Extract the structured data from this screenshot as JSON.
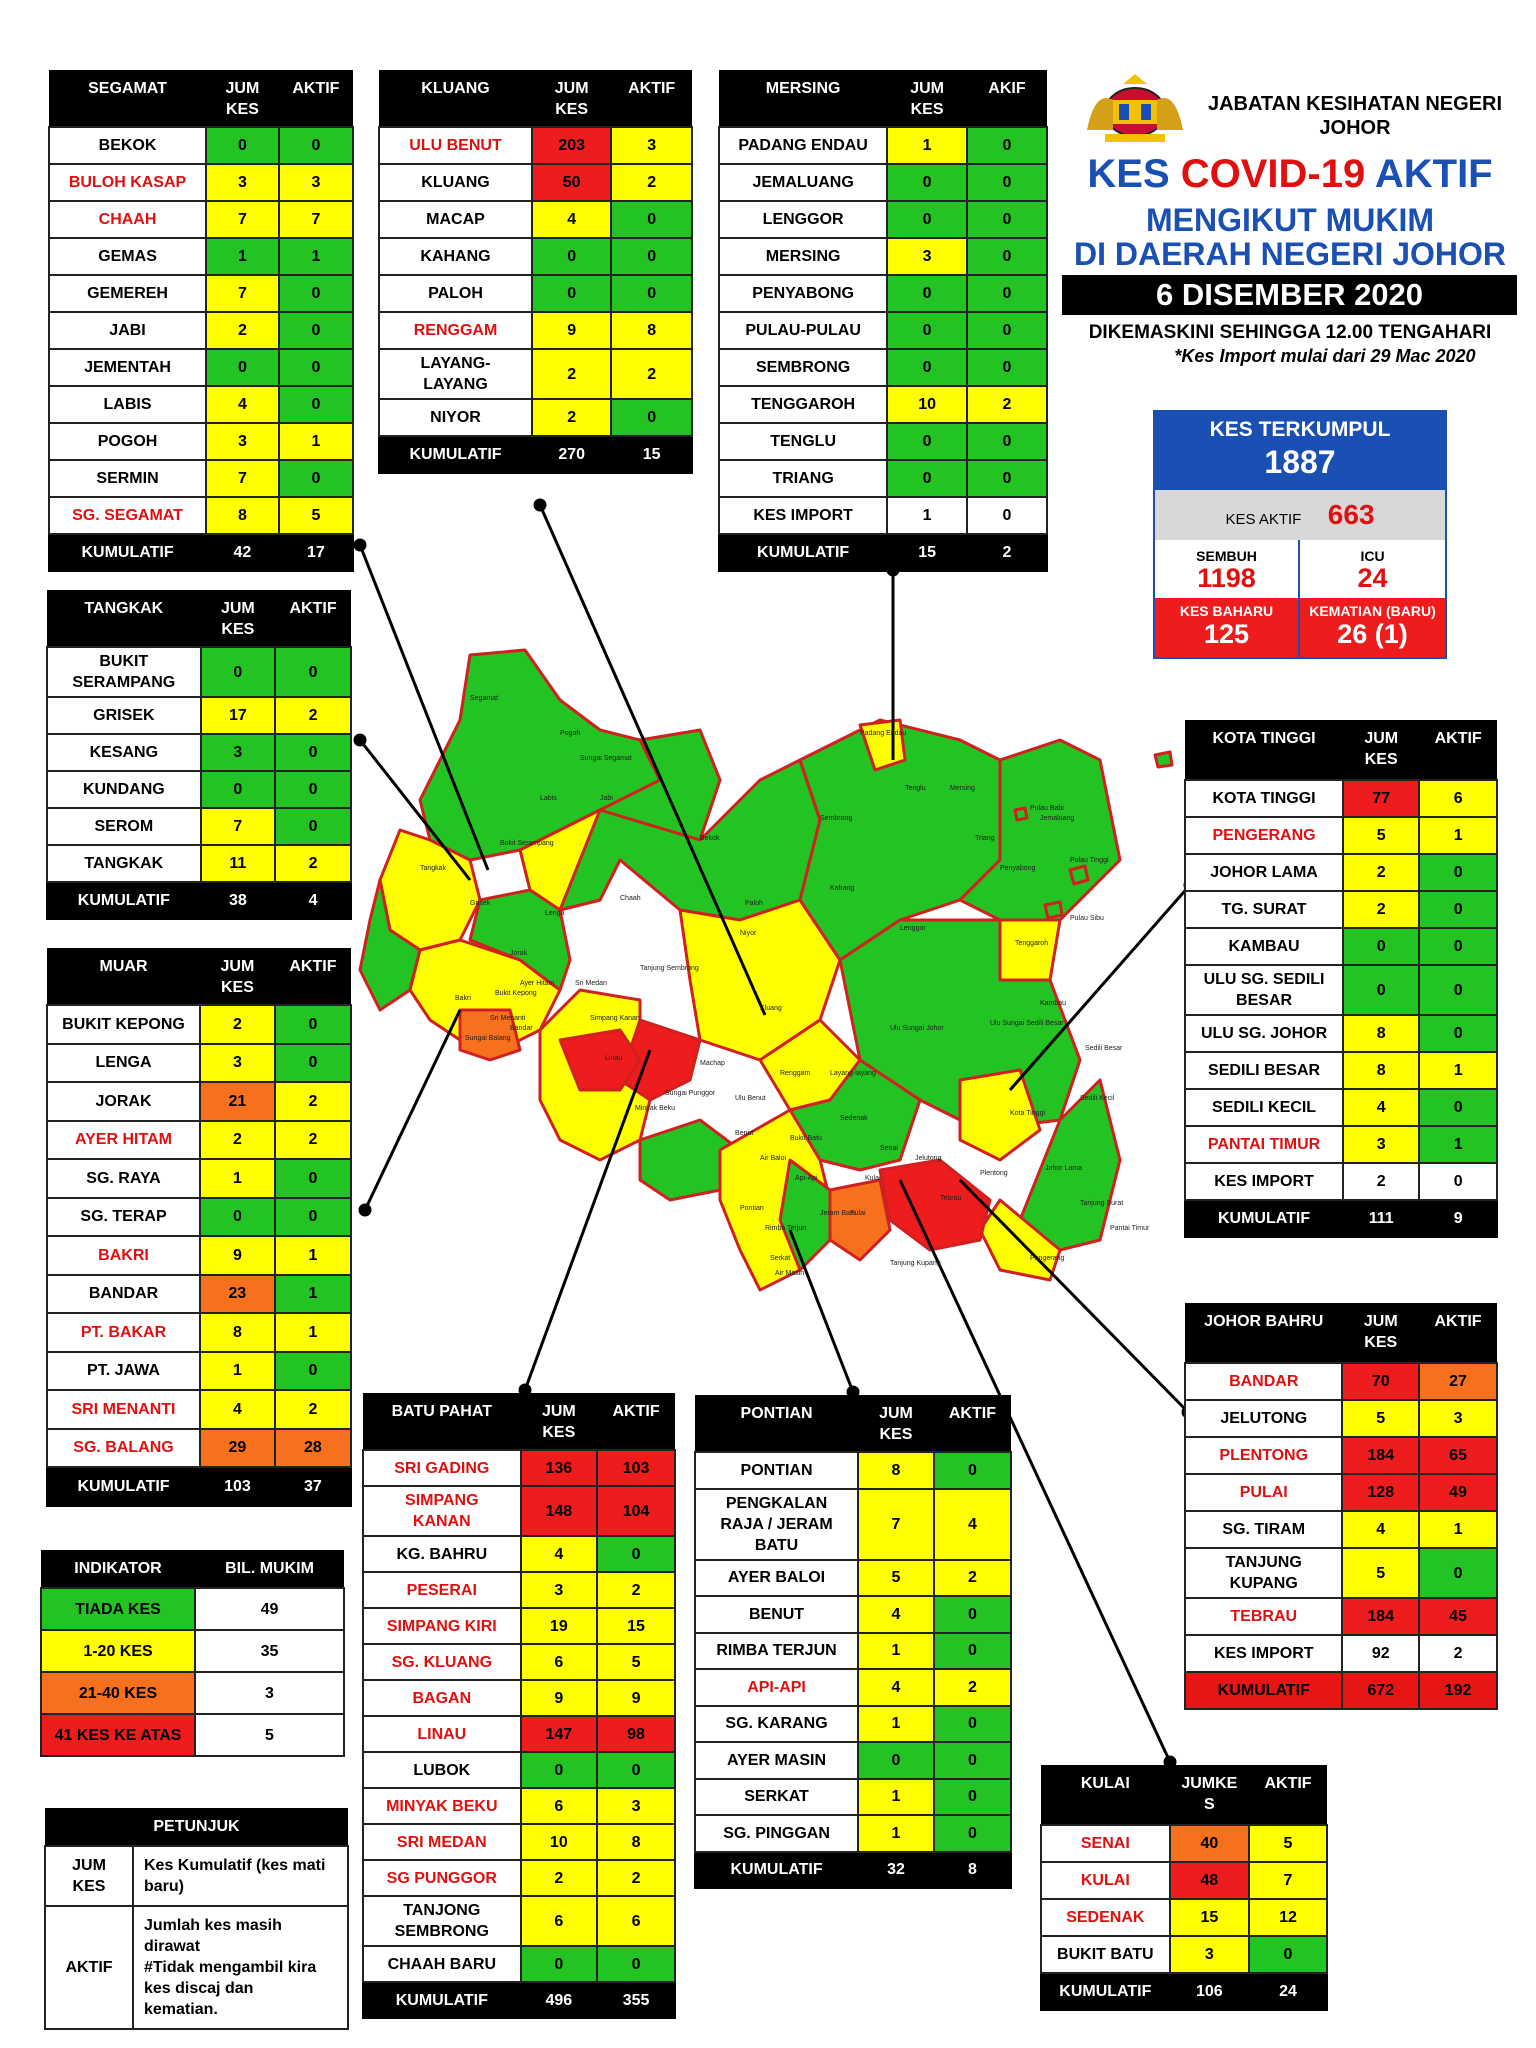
{
  "header": {
    "agency": "JABATAN KESIHATAN NEGERI\nJOHOR",
    "title_part1": "KES ",
    "title_part2": "COVID-19 ",
    "title_part3": "AKTIF",
    "subtitle1": "MENGIKUT MUKIM",
    "subtitle2": "DI DAERAH NEGERI JOHOR",
    "date": "6 DISEMBER 2020",
    "updated": "DIKEMASKINI SEHINGGA 12.00 TENGAHARI",
    "import_note": "*Kes Import mulai dari 29 Mac 2020"
  },
  "summary": {
    "cumulative_label": "KES TERKUMPUL",
    "cumulative_value": "1887",
    "active_label": "KES AKTIF",
    "active_value": "663",
    "recovered_label": "SEMBUH",
    "recovered_value": "1198",
    "icu_label": "ICU",
    "icu_value": "24",
    "new_label": "KES BAHARU",
    "new_value": "125",
    "death_label": "KEMATIAN (BARU)",
    "death_value": "26 (1)"
  },
  "colors": {
    "green": "#22c322",
    "yellow": "#ffff00",
    "orange": "#f7701e",
    "red": "#ee1c1c",
    "blue": "#1a4fb4"
  },
  "districts": [
    {
      "name": "SEGAMAT",
      "col1": "JUM\nKES",
      "col2": "AKTIF",
      "rows": [
        {
          "m": "BEKOK",
          "k": "0",
          "a": "0",
          "red": false,
          "kc": "g",
          "ac": "g"
        },
        {
          "m": "BULOH KASAP",
          "k": "3",
          "a": "3",
          "red": true,
          "kc": "y",
          "ac": "y"
        },
        {
          "m": "CHAAH",
          "k": "7",
          "a": "7",
          "red": true,
          "kc": "y",
          "ac": "y"
        },
        {
          "m": "GEMAS",
          "k": "1",
          "a": "1",
          "red": false,
          "kc": "g",
          "ac": "g"
        },
        {
          "m": "GEMEREH",
          "k": "7",
          "a": "0",
          "red": false,
          "kc": "y",
          "ac": "g"
        },
        {
          "m": "JABI",
          "k": "2",
          "a": "0",
          "red": false,
          "kc": "y",
          "ac": "g"
        },
        {
          "m": "JEMENTAH",
          "k": "0",
          "a": "0",
          "red": false,
          "kc": "g",
          "ac": "g"
        },
        {
          "m": "LABIS",
          "k": "4",
          "a": "0",
          "red": false,
          "kc": "y",
          "ac": "g"
        },
        {
          "m": "POGOH",
          "k": "3",
          "a": "1",
          "red": false,
          "kc": "y",
          "ac": "y"
        },
        {
          "m": "SERMIN",
          "k": "7",
          "a": "0",
          "red": false,
          "kc": "y",
          "ac": "g"
        },
        {
          "m": "SG. SEGAMAT",
          "k": "8",
          "a": "5",
          "red": true,
          "kc": "y",
          "ac": "y"
        }
      ],
      "total_label": "KUMULATIF",
      "total_k": "42",
      "total_a": "17"
    },
    {
      "name": "KLUANG",
      "col1": "JUM\nKES",
      "col2": "AKTIF",
      "rows": [
        {
          "m": "ULU BENUT",
          "k": "203",
          "a": "3",
          "red": true,
          "kc": "r",
          "ac": "y"
        },
        {
          "m": "KLUANG",
          "k": "50",
          "a": "2",
          "red": false,
          "kc": "r",
          "ac": "y"
        },
        {
          "m": "MACAP",
          "k": "4",
          "a": "0",
          "red": false,
          "kc": "y",
          "ac": "g"
        },
        {
          "m": "KAHANG",
          "k": "0",
          "a": "0",
          "red": false,
          "kc": "g",
          "ac": "g"
        },
        {
          "m": "PALOH",
          "k": "0",
          "a": "0",
          "red": false,
          "kc": "g",
          "ac": "g"
        },
        {
          "m": "RENGGAM",
          "k": "9",
          "a": "8",
          "red": true,
          "kc": "y",
          "ac": "y"
        },
        {
          "m": "LAYANG-\nLAYANG",
          "k": "2",
          "a": "2",
          "red": false,
          "kc": "y",
          "ac": "y"
        },
        {
          "m": "NIYOR",
          "k": "2",
          "a": "0",
          "red": false,
          "kc": "y",
          "ac": "g"
        }
      ],
      "total_label": "KUMULATIF",
      "total_k": "270",
      "total_a": "15"
    },
    {
      "name": "MERSING",
      "col1": "JUM\nKES",
      "col2": "AKIF",
      "rows": [
        {
          "m": "PADANG ENDAU",
          "k": "1",
          "a": "0",
          "red": false,
          "kc": "y",
          "ac": "g"
        },
        {
          "m": "JEMALUANG",
          "k": "0",
          "a": "0",
          "red": false,
          "kc": "g",
          "ac": "g"
        },
        {
          "m": "LENGGOR",
          "k": "0",
          "a": "0",
          "red": false,
          "kc": "g",
          "ac": "g"
        },
        {
          "m": "MERSING",
          "k": "3",
          "a": "0",
          "red": false,
          "kc": "y",
          "ac": "g"
        },
        {
          "m": "PENYABONG",
          "k": "0",
          "a": "0",
          "red": false,
          "kc": "g",
          "ac": "g"
        },
        {
          "m": "PULAU-PULAU",
          "k": "0",
          "a": "0",
          "red": false,
          "kc": "g",
          "ac": "g"
        },
        {
          "m": "SEMBRONG",
          "k": "0",
          "a": "0",
          "red": false,
          "kc": "g",
          "ac": "g"
        },
        {
          "m": "TENGGAROH",
          "k": "10",
          "a": "2",
          "red": false,
          "kc": "y",
          "ac": "y"
        },
        {
          "m": "TENGLU",
          "k": "0",
          "a": "0",
          "red": false,
          "kc": "g",
          "ac": "g"
        },
        {
          "m": "TRIANG",
          "k": "0",
          "a": "0",
          "red": false,
          "kc": "g",
          "ac": "g"
        },
        {
          "m": "KES IMPORT",
          "k": "1",
          "a": "0",
          "red": false,
          "kc": "w",
          "ac": "w"
        }
      ],
      "total_label": "KUMULATIF",
      "total_k": "15",
      "total_a": "2"
    },
    {
      "name": "TANGKAK",
      "col1": "JUM\nKES",
      "col2": "AKTIF",
      "rows": [
        {
          "m": "BUKIT\nSERAMPANG",
          "k": "0",
          "a": "0",
          "red": false,
          "kc": "g",
          "ac": "g"
        },
        {
          "m": "GRISEK",
          "k": "17",
          "a": "2",
          "red": false,
          "kc": "y",
          "ac": "y"
        },
        {
          "m": "KESANG",
          "k": "3",
          "a": "0",
          "red": false,
          "kc": "g",
          "ac": "g"
        },
        {
          "m": "KUNDANG",
          "k": "0",
          "a": "0",
          "red": false,
          "kc": "g",
          "ac": "g"
        },
        {
          "m": "SEROM",
          "k": "7",
          "a": "0",
          "red": false,
          "kc": "y",
          "ac": "g"
        },
        {
          "m": "TANGKAK",
          "k": "11",
          "a": "2",
          "red": false,
          "kc": "y",
          "ac": "y"
        }
      ],
      "total_label": "KUMULATIF",
      "total_k": "38",
      "total_a": "4"
    },
    {
      "name": "MUAR",
      "col1": "JUM\nKES",
      "col2": "AKTIF",
      "rows": [
        {
          "m": "BUKIT KEPONG",
          "k": "2",
          "a": "0",
          "red": false,
          "kc": "y",
          "ac": "g"
        },
        {
          "m": "LENGA",
          "k": "3",
          "a": "0",
          "red": false,
          "kc": "y",
          "ac": "g"
        },
        {
          "m": "JORAK",
          "k": "21",
          "a": "2",
          "red": false,
          "kc": "o",
          "ac": "y"
        },
        {
          "m": "AYER HITAM",
          "k": "2",
          "a": "2",
          "red": true,
          "kc": "y",
          "ac": "y"
        },
        {
          "m": "SG. RAYA",
          "k": "1",
          "a": "0",
          "red": false,
          "kc": "y",
          "ac": "g"
        },
        {
          "m": "SG. TERAP",
          "k": "0",
          "a": "0",
          "red": false,
          "kc": "g",
          "ac": "g"
        },
        {
          "m": "BAKRI",
          "k": "9",
          "a": "1",
          "red": true,
          "kc": "y",
          "ac": "y"
        },
        {
          "m": "BANDAR",
          "k": "23",
          "a": "1",
          "red": false,
          "kc": "o",
          "ac": "g"
        },
        {
          "m": "PT. BAKAR",
          "k": "8",
          "a": "1",
          "red": true,
          "kc": "y",
          "ac": "y"
        },
        {
          "m": "PT. JAWA",
          "k": "1",
          "a": "0",
          "red": false,
          "kc": "y",
          "ac": "g"
        },
        {
          "m": "SRI MENANTI",
          "k": "4",
          "a": "2",
          "red": true,
          "kc": "y",
          "ac": "y"
        },
        {
          "m": "SG. BALANG",
          "k": "29",
          "a": "28",
          "red": true,
          "kc": "o",
          "ac": "o"
        }
      ],
      "total_label": "KUMULATIF",
      "total_k": "103",
      "total_a": "37"
    },
    {
      "name": "BATU PAHAT",
      "col1": "JUM\nKES",
      "col2": "AKTIF",
      "rows": [
        {
          "m": "SRI GADING",
          "k": "136",
          "a": "103",
          "red": true,
          "kc": "r",
          "ac": "r"
        },
        {
          "m": "SIMPANG\nKANAN",
          "k": "148",
          "a": "104",
          "red": true,
          "kc": "r",
          "ac": "r"
        },
        {
          "m": "KG. BAHRU",
          "k": "4",
          "a": "0",
          "red": false,
          "kc": "y",
          "ac": "g"
        },
        {
          "m": "PESERAI",
          "k": "3",
          "a": "2",
          "red": true,
          "kc": "y",
          "ac": "y"
        },
        {
          "m": "SIMPANG KIRI",
          "k": "19",
          "a": "15",
          "red": true,
          "kc": "y",
          "ac": "y"
        },
        {
          "m": "SG. KLUANG",
          "k": "6",
          "a": "5",
          "red": true,
          "kc": "y",
          "ac": "y"
        },
        {
          "m": "BAGAN",
          "k": "9",
          "a": "9",
          "red": true,
          "kc": "y",
          "ac": "y"
        },
        {
          "m": "LINAU",
          "k": "147",
          "a": "98",
          "red": true,
          "kc": "r",
          "ac": "r"
        },
        {
          "m": "LUBOK",
          "k": "0",
          "a": "0",
          "red": false,
          "kc": "g",
          "ac": "g"
        },
        {
          "m": "MINYAK BEKU",
          "k": "6",
          "a": "3",
          "red": true,
          "kc": "y",
          "ac": "y"
        },
        {
          "m": "SRI MEDAN",
          "k": "10",
          "a": "8",
          "red": true,
          "kc": "y",
          "ac": "y"
        },
        {
          "m": "SG PUNGGOR",
          "k": "2",
          "a": "2",
          "red": true,
          "kc": "y",
          "ac": "y"
        },
        {
          "m": "TANJONG\nSEMBRONG",
          "k": "6",
          "a": "6",
          "red": false,
          "kc": "y",
          "ac": "y"
        },
        {
          "m": "CHAAH BARU",
          "k": "0",
          "a": "0",
          "red": false,
          "kc": "g",
          "ac": "g"
        }
      ],
      "total_label": "KUMULATIF",
      "total_k": "496",
      "total_a": "355"
    },
    {
      "name": "PONTIAN",
      "col1": "JUM\nKES",
      "col2": "AKTIF",
      "rows": [
        {
          "m": "PONTIAN",
          "k": "8",
          "a": "0",
          "red": false,
          "kc": "y",
          "ac": "g"
        },
        {
          "m": "PENGKALAN\nRAJA / JERAM\nBATU",
          "k": "7",
          "a": "4",
          "red": false,
          "kc": "y",
          "ac": "y"
        },
        {
          "m": "AYER BALOI",
          "k": "5",
          "a": "2",
          "red": false,
          "kc": "y",
          "ac": "y"
        },
        {
          "m": "BENUT",
          "k": "4",
          "a": "0",
          "red": false,
          "kc": "y",
          "ac": "g"
        },
        {
          "m": "RIMBA TERJUN",
          "k": "1",
          "a": "0",
          "red": false,
          "kc": "y",
          "ac": "g"
        },
        {
          "m": "API-API",
          "k": "4",
          "a": "2",
          "red": true,
          "kc": "y",
          "ac": "y"
        },
        {
          "m": "SG. KARANG",
          "k": "1",
          "a": "0",
          "red": false,
          "kc": "y",
          "ac": "g"
        },
        {
          "m": "AYER MASIN",
          "k": "0",
          "a": "0",
          "red": false,
          "kc": "g",
          "ac": "g"
        },
        {
          "m": "SERKAT",
          "k": "1",
          "a": "0",
          "red": false,
          "kc": "y",
          "ac": "g"
        },
        {
          "m": "SG. PINGGAN",
          "k": "1",
          "a": "0",
          "red": false,
          "kc": "y",
          "ac": "g"
        }
      ],
      "total_label": "KUMULATIF",
      "total_k": "32",
      "total_a": "8"
    },
    {
      "name": "KOTA TINGGI",
      "col1": "JUM\nKES",
      "col2": "AKTIF",
      "rows": [
        {
          "m": "KOTA TINGGI",
          "k": "77",
          "a": "6",
          "red": false,
          "kc": "r",
          "ac": "y"
        },
        {
          "m": "PENGERANG",
          "k": "5",
          "a": "1",
          "red": true,
          "kc": "y",
          "ac": "y"
        },
        {
          "m": "JOHOR LAMA",
          "k": "2",
          "a": "0",
          "red": false,
          "kc": "y",
          "ac": "g"
        },
        {
          "m": "TG. SURAT",
          "k": "2",
          "a": "0",
          "red": false,
          "kc": "y",
          "ac": "g"
        },
        {
          "m": "KAMBAU",
          "k": "0",
          "a": "0",
          "red": false,
          "kc": "g",
          "ac": "g"
        },
        {
          "m": "ULU SG. SEDILI\nBESAR",
          "k": "0",
          "a": "0",
          "red": false,
          "kc": "g",
          "ac": "g"
        },
        {
          "m": "ULU SG. JOHOR",
          "k": "8",
          "a": "0",
          "red": false,
          "kc": "y",
          "ac": "g"
        },
        {
          "m": "SEDILI BESAR",
          "k": "8",
          "a": "1",
          "red": false,
          "kc": "y",
          "ac": "y"
        },
        {
          "m": "SEDILI KECIL",
          "k": "4",
          "a": "0",
          "red": false,
          "kc": "y",
          "ac": "g"
        },
        {
          "m": "PANTAI TIMUR",
          "k": "3",
          "a": "1",
          "red": true,
          "kc": "y",
          "ac": "g"
        },
        {
          "m": "KES IMPORT",
          "k": "2",
          "a": "0",
          "red": false,
          "kc": "w",
          "ac": "w"
        }
      ],
      "total_label": "KUMULATIF",
      "total_k": "111",
      "total_a": "9"
    },
    {
      "name": "JOHOR BAHRU",
      "col1": "JUM\nKES",
      "col2": "AKTIF",
      "rows": [
        {
          "m": "BANDAR",
          "k": "70",
          "a": "27",
          "red": true,
          "kc": "r",
          "ac": "o"
        },
        {
          "m": "JELUTONG",
          "k": "5",
          "a": "3",
          "red": false,
          "kc": "y",
          "ac": "y"
        },
        {
          "m": "PLENTONG",
          "k": "184",
          "a": "65",
          "red": true,
          "kc": "r",
          "ac": "r"
        },
        {
          "m": "PULAI",
          "k": "128",
          "a": "49",
          "red": true,
          "kc": "r",
          "ac": "r"
        },
        {
          "m": "SG. TIRAM",
          "k": "4",
          "a": "1",
          "red": false,
          "kc": "y",
          "ac": "y"
        },
        {
          "m": "TANJUNG\nKUPANG",
          "k": "5",
          "a": "0",
          "red": false,
          "kc": "y",
          "ac": "g"
        },
        {
          "m": "TEBRAU",
          "k": "184",
          "a": "45",
          "red": true,
          "kc": "r",
          "ac": "r"
        },
        {
          "m": "KES IMPORT",
          "k": "92",
          "a": "2",
          "red": false,
          "kc": "w",
          "ac": "w"
        }
      ],
      "total_label": "KUMULATIF",
      "total_k": "672",
      "total_a": "192"
    },
    {
      "name": "KULAI",
      "col1": "JUMKE\nS",
      "col2": "AKTIF",
      "rows": [
        {
          "m": "SENAI",
          "k": "40",
          "a": "5",
          "red": true,
          "kc": "o",
          "ac": "y"
        },
        {
          "m": "KULAI",
          "k": "48",
          "a": "7",
          "red": true,
          "kc": "r",
          "ac": "y"
        },
        {
          "m": "SEDENAK",
          "k": "15",
          "a": "12",
          "red": true,
          "kc": "y",
          "ac": "y"
        },
        {
          "m": "BUKIT BATU",
          "k": "3",
          "a": "0",
          "red": false,
          "kc": "y",
          "ac": "g"
        }
      ],
      "total_label": "KUMULATIF",
      "total_k": "106",
      "total_a": "24"
    }
  ],
  "indicator": {
    "h1": "INDIKATOR",
    "h2": "BIL. MUKIM",
    "rows": [
      {
        "label": "TIADA KES",
        "count": "49",
        "c": "g"
      },
      {
        "label": "1-20 KES",
        "count": "35",
        "c": "y"
      },
      {
        "label": "21-40 KES",
        "count": "3",
        "c": "o"
      },
      {
        "label": "41 KES KE ATAS",
        "count": "5",
        "c": "r"
      }
    ]
  },
  "legend": {
    "title": "PETUNJUK",
    "rows": [
      {
        "term": "JUM\nKES",
        "desc": "Kes Kumulatif (kes mati\nbaru)"
      },
      {
        "term": "AKTIF",
        "desc": "Jumlah kes masih\ndirawat\n#Tidak mengambil kira\nkes discaj dan\nkematian."
      }
    ]
  },
  "map_labels": [
    "Segamat",
    "Labis",
    "Bekok",
    "Chaah",
    "Pogoh",
    "Sungai Segamat",
    "Jabi",
    "Tangkak",
    "Bukit Serampang",
    "Grisek",
    "Lenga",
    "Jorak",
    "Bukit Kepong",
    "Kluang",
    "Paloh",
    "Niyor",
    "Kahang",
    "Renggam",
    "Layang-layang",
    "Mersing",
    "Sembrong",
    "Lenggor",
    "Penyabong",
    "Jemaluang",
    "Padang Endau",
    "Tenglu",
    "Triang",
    "Tenggaroh",
    "Pulau Babi",
    "Pulau Tinggi",
    "Pulau Sibu",
    "Kota Tinggi",
    "Ulu Sungai Johor",
    "Ulu Sungai Sedili Besar",
    "Kambau",
    "Sedili Besar",
    "Sedili Kecil",
    "Johor Lama",
    "Tanjung Surat",
    "Pantai Timur",
    "Pengerang",
    "Tebrau",
    "Plentong",
    "Jelutong",
    "Pulai",
    "Tanjung Kupang",
    "Sedenak",
    "Senai",
    "Kulai",
    "Bukit Batu",
    "Sri Medan",
    "Ayer Hitam",
    "Tanjung Sembrong",
    "Simpang Kanan",
    "Linau",
    "Machap",
    "Ulu Benut",
    "Minyak Beku",
    "Sungai Punggor",
    "Benut",
    "Air Baloi",
    "Api-Api",
    "Pontian",
    "Rimba Terjun",
    "Jeram Batu",
    "Serkat",
    "Air Masin",
    "Bakri",
    "Sungai Balang",
    "Sri Menanti",
    "Bandar"
  ]
}
